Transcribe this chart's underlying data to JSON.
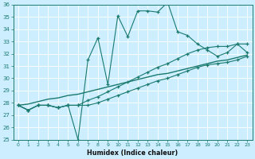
{
  "xlabel": "Humidex (Indice chaleur)",
  "bg_color": "#cceeff",
  "grid_color": "#ffffff",
  "line_color": "#1a7a6e",
  "x": [
    0,
    1,
    2,
    3,
    4,
    5,
    6,
    7,
    8,
    9,
    10,
    11,
    12,
    13,
    14,
    15,
    16,
    17,
    18,
    19,
    20,
    21,
    22,
    23
  ],
  "y_main": [
    27.8,
    27.4,
    27.8,
    27.8,
    27.6,
    27.8,
    25.0,
    31.5,
    33.3,
    29.5,
    35.1,
    33.4,
    35.5,
    35.5,
    35.4,
    36.2,
    33.8,
    33.5,
    32.8,
    32.3,
    31.8,
    32.1,
    32.8,
    32.1
  ],
  "y_upper": [
    27.8,
    27.4,
    27.8,
    27.8,
    27.6,
    27.8,
    27.8,
    28.2,
    28.5,
    28.9,
    29.3,
    29.7,
    30.1,
    30.5,
    30.9,
    31.2,
    31.6,
    32.0,
    32.3,
    32.5,
    32.6,
    32.6,
    32.8,
    32.8
  ],
  "y_lower": [
    27.8,
    27.4,
    27.8,
    27.8,
    27.6,
    27.8,
    27.8,
    27.8,
    28.0,
    28.3,
    28.6,
    28.9,
    29.2,
    29.5,
    29.8,
    30.0,
    30.3,
    30.6,
    30.9,
    31.1,
    31.2,
    31.3,
    31.5,
    31.8
  ],
  "y_trend": [
    27.8,
    27.9,
    28.1,
    28.3,
    28.4,
    28.6,
    28.7,
    28.9,
    29.1,
    29.3,
    29.5,
    29.7,
    29.9,
    30.1,
    30.3,
    30.4,
    30.6,
    30.8,
    31.0,
    31.2,
    31.4,
    31.5,
    31.7,
    31.9
  ],
  "ylim": [
    25,
    36
  ],
  "xlim": [
    -0.5,
    23.5
  ],
  "yticks": [
    25,
    26,
    27,
    28,
    29,
    30,
    31,
    32,
    33,
    34,
    35,
    36
  ],
  "xticks": [
    0,
    1,
    2,
    3,
    4,
    5,
    6,
    7,
    8,
    9,
    10,
    11,
    12,
    13,
    14,
    15,
    16,
    17,
    18,
    19,
    20,
    21,
    22,
    23
  ]
}
